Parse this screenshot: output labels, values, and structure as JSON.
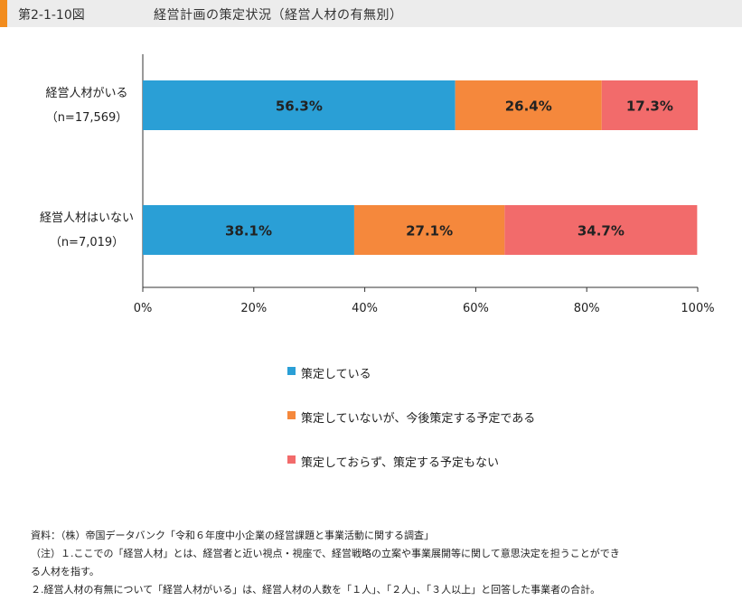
{
  "header": {
    "figure_label": "第2-1-10図",
    "title": "経営計画の策定状況（経営人材の有無別）"
  },
  "chart_data": {
    "type": "bar",
    "orientation": "horizontal",
    "stacked": true,
    "title": "経営計画の策定状況（経営人材の有無別）",
    "categories": [
      {
        "name": "経営人材がいる",
        "n_label": "（n=17,569）"
      },
      {
        "name": "経営人材はいない",
        "n_label": "（n=7,019）"
      }
    ],
    "series": [
      {
        "name": "策定している",
        "color": "#2a9fd6",
        "values": [
          56.3,
          38.1
        ],
        "labels": [
          "56.3%",
          "38.1%"
        ]
      },
      {
        "name": "策定していないが、今後策定する予定である",
        "color": "#f5883c",
        "values": [
          26.4,
          27.1
        ],
        "labels": [
          "26.4%",
          "27.1%"
        ]
      },
      {
        "name": "策定しておらず、策定する予定もない",
        "color": "#f26b6b",
        "values": [
          17.3,
          34.7
        ],
        "labels": [
          "17.3%",
          "34.7%"
        ]
      }
    ],
    "xlim": [
      0,
      100
    ],
    "xticks": [
      0,
      20,
      40,
      60,
      80,
      100
    ],
    "xtick_labels": [
      "0%",
      "20%",
      "40%",
      "60%",
      "80%",
      "100%"
    ],
    "grid": false,
    "legend_position": "bottom"
  },
  "notes": {
    "source": "資料：（株）帝国データバンク「令和６年度中小企業の経営課題と事業活動に関する調査」",
    "note1_line1": "（注）１.ここでの「経営人材」とは、経営者と近い視点・視座で、経営戦略の立案や事業展開等に関して意思決定を担うことができ",
    "note1_line2": "る人材を指す。",
    "note2": "２.経営人材の有無について「経営人材がいる」は、経営人材の人数を「１人」、「２人」、「３人以上」と回答した事業者の合計。"
  }
}
